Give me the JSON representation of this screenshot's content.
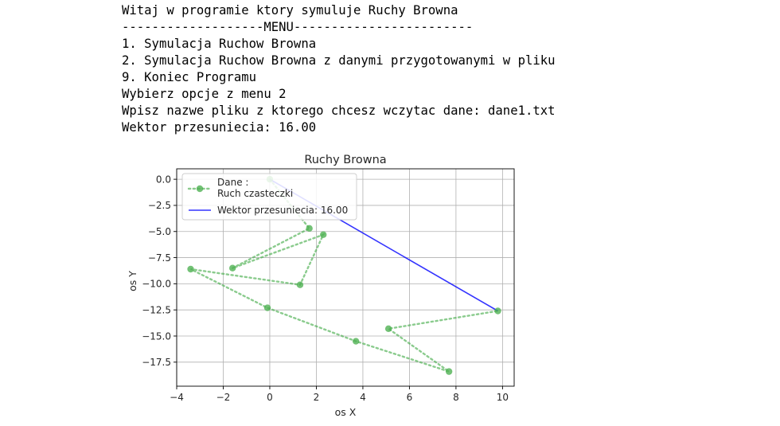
{
  "console": {
    "lines": [
      "Witaj w programie ktory symuluje Ruchy Browna",
      "-------------------MENU------------------------",
      "1. Symulacja Ruchow Browna",
      "2. Symulacja Ruchow Browna z danymi przygotowanymi w pliku",
      "9. Koniec Programu",
      "Wybierz opcje z menu 2",
      "Wpisz nazwe pliku z ktorego chcesz wczytac dane: dane1.txt",
      "Wektor przesuniecia: 16.00"
    ]
  },
  "chart_data": {
    "type": "line",
    "title": "Ruchy Browna",
    "xlabel": "os X",
    "ylabel": "os Y",
    "xlim": [
      -4.0,
      10.5
    ],
    "ylim": [
      -19.8,
      1.0
    ],
    "xticks": [
      -4,
      -2,
      0,
      2,
      4,
      6,
      8,
      10
    ],
    "xtick_labels": [
      "−4",
      "−2",
      "0",
      "2",
      "4",
      "6",
      "8",
      "10"
    ],
    "yticks": [
      0.0,
      -2.5,
      -5.0,
      -7.5,
      -10.0,
      -12.5,
      -15.0,
      -17.5
    ],
    "ytick_labels": [
      "0.0",
      "−2.5",
      "−5.0",
      "−7.5",
      "−10.0",
      "−12.5",
      "−15.0",
      "−17.5"
    ],
    "grid": true,
    "legend_position": "top-left",
    "series": [
      {
        "name": "Dane :\nRuch czasteczki",
        "legend_lines": [
          "Dane :",
          "Ruch czasteczki"
        ],
        "style": "dotted-markers",
        "color": "#4caf50",
        "x": [
          0.0,
          1.7,
          -1.6,
          2.3,
          1.3,
          -3.4,
          -0.1,
          3.7,
          7.7,
          5.1,
          9.8
        ],
        "y": [
          0.0,
          -4.7,
          -8.5,
          -5.3,
          -10.1,
          -8.6,
          -12.3,
          -15.5,
          -18.4,
          -14.3,
          -12.6
        ]
      },
      {
        "name": "Wektor przesuniecia: 16.00",
        "style": "solid",
        "color": "#0000ff",
        "x": [
          0.0,
          9.8
        ],
        "y": [
          0.0,
          -12.6
        ]
      }
    ]
  }
}
